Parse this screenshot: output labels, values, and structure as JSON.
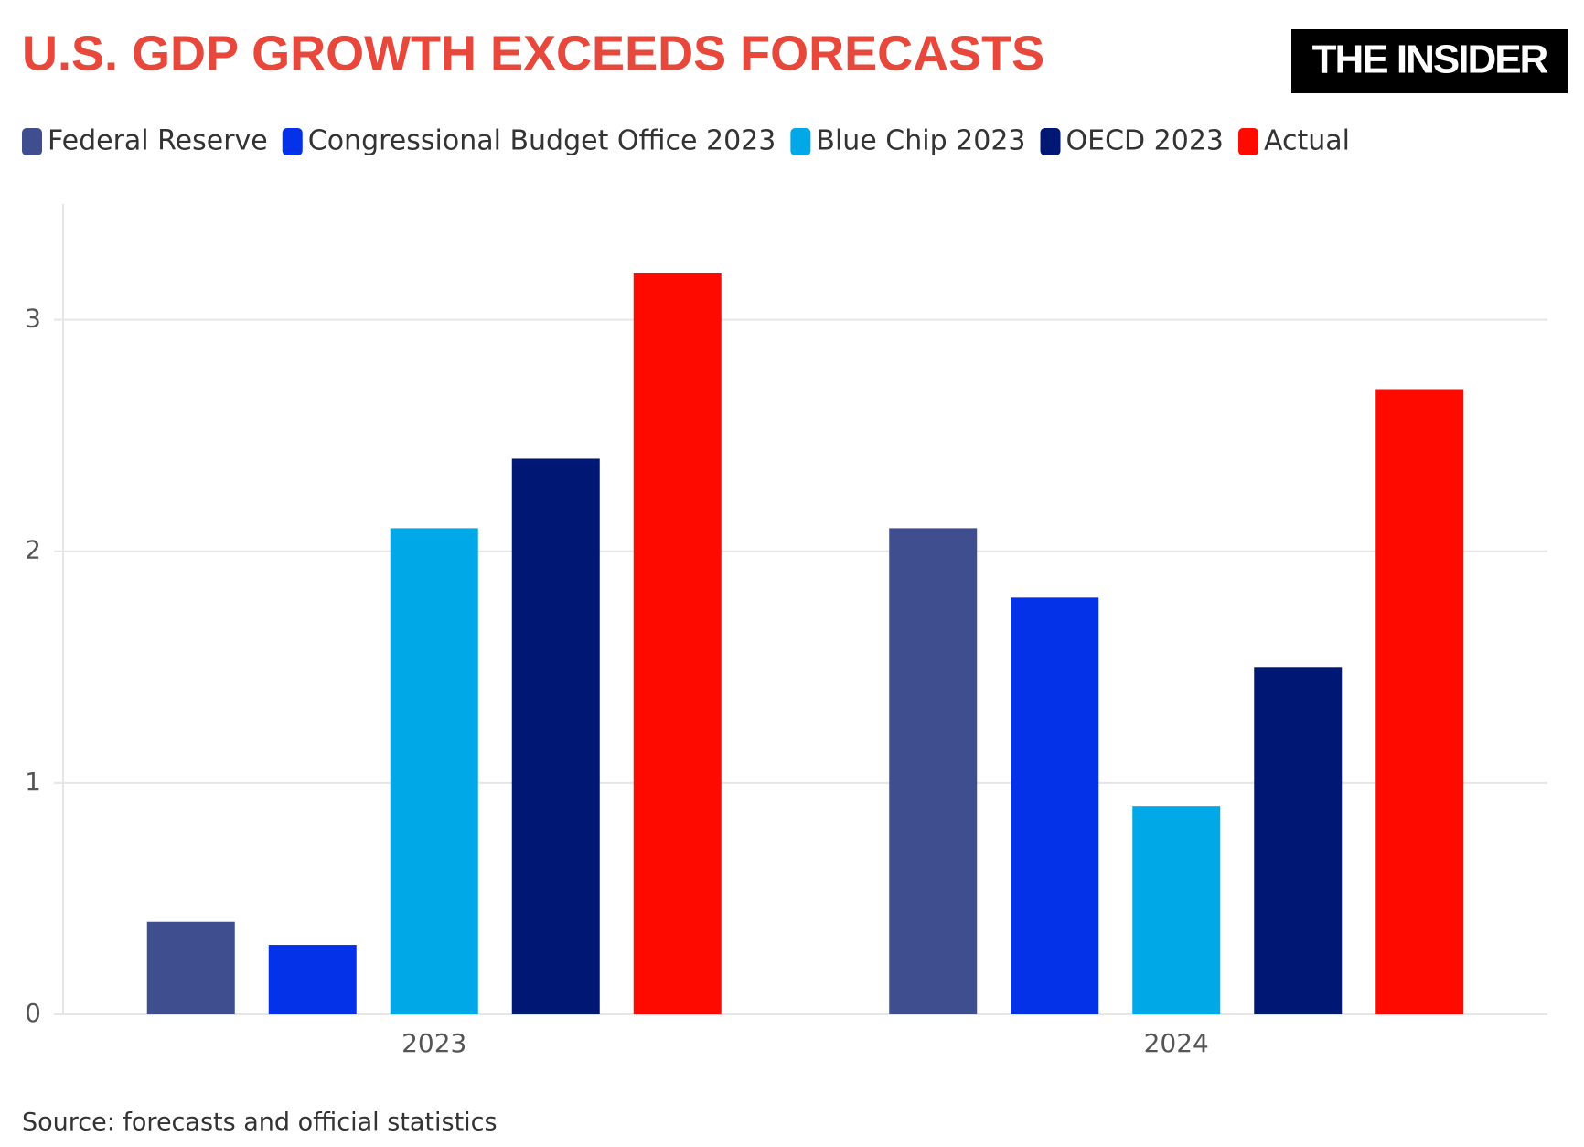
{
  "chart_data": {
    "type": "bar",
    "title": "U.S. GDP GROWTH EXCEEDS FORECASTS",
    "logo": "THE INSIDER",
    "source": "Source: forecasts and official statistics",
    "categories": [
      "2023",
      "2024"
    ],
    "series": [
      {
        "name": "Federal Reserve",
        "color": "#3f4e8e",
        "values": [
          0.4,
          2.1
        ]
      },
      {
        "name": "Congressional Budget Office 2023",
        "color": "#0432e8",
        "values": [
          0.3,
          1.8
        ]
      },
      {
        "name": "Blue Chip 2023",
        "color": "#00a8e8",
        "values": [
          2.1,
          0.9
        ]
      },
      {
        "name": "OECD 2023",
        "color": "#001874",
        "values": [
          2.4,
          1.5
        ]
      },
      {
        "name": "Actual",
        "color": "#ff0a00",
        "values": [
          3.2,
          2.7
        ]
      }
    ],
    "ylim": [
      0,
      3.5
    ],
    "yticks": [
      0,
      1,
      2,
      3
    ],
    "grid": true
  }
}
